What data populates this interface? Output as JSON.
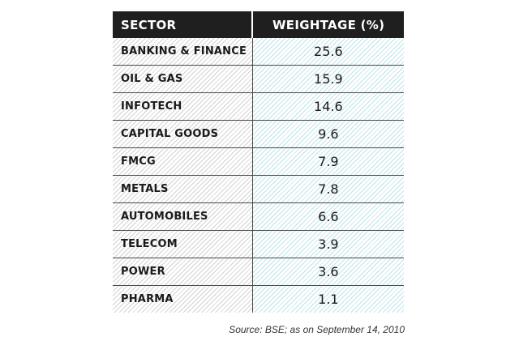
{
  "chart_data": {
    "type": "table",
    "columns": [
      "SECTOR",
      "WEIGHTAGE (%)"
    ],
    "rows": [
      {
        "sector": "BANKING & FINANCE",
        "weightage": "25.6"
      },
      {
        "sector": "OIL & GAS",
        "weightage": "15.9"
      },
      {
        "sector": "INFOTECH",
        "weightage": "14.6"
      },
      {
        "sector": "CAPITAL GOODS",
        "weightage": "9.6"
      },
      {
        "sector": "FMCG",
        "weightage": "7.9"
      },
      {
        "sector": "METALS",
        "weightage": "7.8"
      },
      {
        "sector": "AUTOMOBILES",
        "weightage": "6.6"
      },
      {
        "sector": "TELECOM",
        "weightage": "3.9"
      },
      {
        "sector": "POWER",
        "weightage": "3.6"
      },
      {
        "sector": "PHARMA",
        "weightage": "1.1"
      }
    ],
    "source": "Source: BSE; as on September 14, 2010"
  },
  "colors": {
    "header_bg": "#1f1f1f",
    "header_text": "#ffffff",
    "sector_hatch": "#d2d2d2",
    "value_hatch": "#bfe3ea"
  }
}
